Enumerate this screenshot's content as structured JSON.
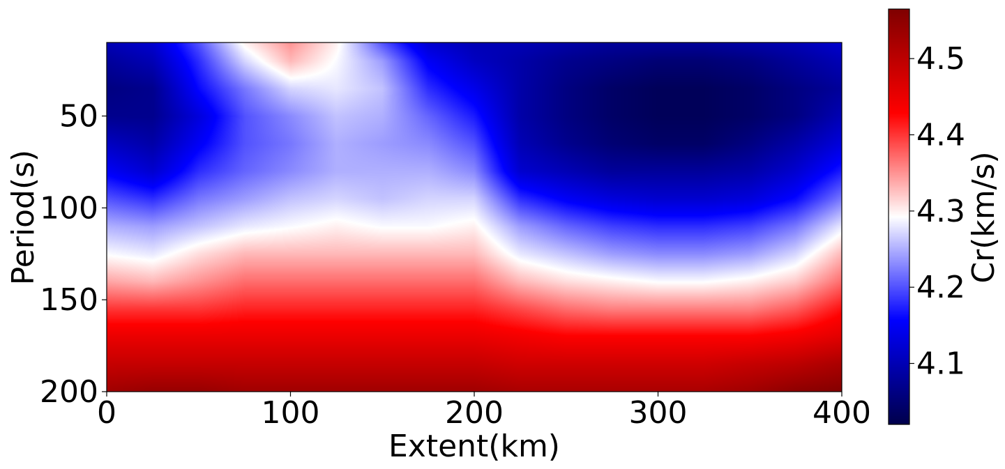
{
  "chart_data": {
    "type": "heatmap",
    "title": "",
    "xlabel": "Extent(km)",
    "ylabel": "Period(s)",
    "xlim": [
      0,
      400
    ],
    "ylim": [
      10,
      200
    ],
    "y_inverted": true,
    "x_ticks": [
      0,
      100,
      200,
      300,
      400
    ],
    "x_tick_labels": [
      "0",
      "100",
      "200",
      "300",
      "400"
    ],
    "y_ticks": [
      50,
      100,
      150,
      200
    ],
    "y_tick_labels": [
      "50",
      "100",
      "150",
      "200"
    ],
    "colorbar": {
      "label": "Cr(km/s)",
      "range": [
        4.02,
        4.565
      ],
      "ticks": [
        4.1,
        4.2,
        4.3,
        4.4,
        4.5
      ],
      "tick_labels": [
        "4.1",
        "4.2",
        "4.3",
        "4.4",
        "4.5"
      ],
      "colormap": "seismic"
    },
    "grid": false,
    "x": [
      0,
      25,
      50,
      75,
      100,
      125,
      150,
      175,
      200,
      225,
      250,
      275,
      300,
      325,
      350,
      375,
      400
    ],
    "y": [
      10,
      20,
      35,
      50,
      65,
      80,
      95,
      110,
      125,
      140,
      155,
      170,
      185,
      200
    ],
    "values": [
      [
        4.1,
        4.12,
        4.2,
        4.3,
        4.35,
        4.3,
        4.2,
        4.12,
        4.1,
        4.1,
        4.09,
        4.08,
        4.08,
        4.08,
        4.09,
        4.1,
        4.12
      ],
      [
        4.08,
        4.1,
        4.18,
        4.27,
        4.33,
        4.29,
        4.24,
        4.15,
        4.11,
        4.09,
        4.07,
        4.06,
        4.05,
        4.05,
        4.06,
        4.08,
        4.1
      ],
      [
        4.06,
        4.07,
        4.16,
        4.22,
        4.27,
        4.28,
        4.26,
        4.18,
        4.14,
        4.09,
        4.06,
        4.04,
        4.03,
        4.03,
        4.04,
        4.06,
        4.08
      ],
      [
        4.07,
        4.07,
        4.13,
        4.2,
        4.23,
        4.26,
        4.25,
        4.21,
        4.17,
        4.09,
        4.06,
        4.04,
        4.03,
        4.03,
        4.04,
        4.06,
        4.1
      ],
      [
        4.11,
        4.09,
        4.15,
        4.2,
        4.22,
        4.25,
        4.24,
        4.23,
        4.2,
        4.1,
        4.07,
        4.05,
        4.04,
        4.04,
        4.06,
        4.09,
        4.13
      ],
      [
        4.15,
        4.12,
        4.18,
        4.21,
        4.23,
        4.25,
        4.25,
        4.25,
        4.23,
        4.12,
        4.1,
        4.08,
        4.08,
        4.08,
        4.09,
        4.12,
        4.17
      ],
      [
        4.2,
        4.18,
        4.22,
        4.24,
        4.26,
        4.27,
        4.26,
        4.27,
        4.27,
        4.18,
        4.15,
        4.13,
        4.12,
        4.12,
        4.13,
        4.16,
        4.22
      ],
      [
        4.25,
        4.24,
        4.26,
        4.28,
        4.29,
        4.3,
        4.29,
        4.29,
        4.3,
        4.24,
        4.21,
        4.19,
        4.18,
        4.18,
        4.19,
        4.22,
        4.28
      ],
      [
        4.29,
        4.28,
        4.31,
        4.33,
        4.33,
        4.33,
        4.33,
        4.33,
        4.33,
        4.28,
        4.26,
        4.24,
        4.23,
        4.23,
        4.24,
        4.27,
        4.33
      ],
      [
        4.34,
        4.33,
        4.35,
        4.37,
        4.37,
        4.37,
        4.37,
        4.37,
        4.37,
        4.33,
        4.31,
        4.3,
        4.29,
        4.29,
        4.3,
        4.32,
        4.37
      ],
      [
        4.4,
        4.4,
        4.4,
        4.41,
        4.41,
        4.41,
        4.41,
        4.41,
        4.41,
        4.39,
        4.37,
        4.36,
        4.36,
        4.36,
        4.36,
        4.38,
        4.42
      ],
      [
        4.45,
        4.45,
        4.45,
        4.45,
        4.45,
        4.45,
        4.45,
        4.45,
        4.45,
        4.44,
        4.43,
        4.43,
        4.43,
        4.43,
        4.43,
        4.44,
        4.46
      ],
      [
        4.49,
        4.49,
        4.49,
        4.49,
        4.49,
        4.49,
        4.49,
        4.49,
        4.49,
        4.48,
        4.48,
        4.48,
        4.48,
        4.48,
        4.49,
        4.5,
        4.52
      ],
      [
        4.53,
        4.54,
        4.54,
        4.53,
        4.53,
        4.53,
        4.53,
        4.53,
        4.53,
        4.52,
        4.52,
        4.52,
        4.52,
        4.52,
        4.53,
        4.55,
        4.56
      ]
    ]
  }
}
